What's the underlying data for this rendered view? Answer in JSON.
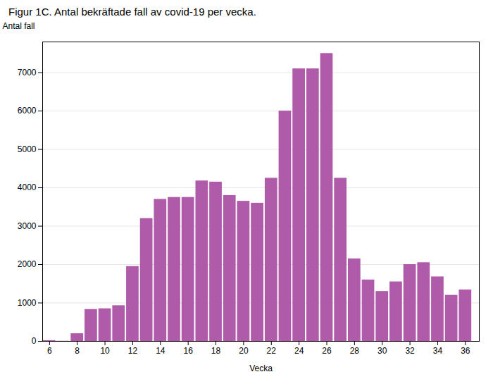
{
  "chart_data": {
    "type": "bar",
    "title": "Figur 1C. Antal bekräftade fall av covid-19 per vecka.",
    "xlabel": "Vecka",
    "ylabel": "Antal fall",
    "x": [
      6,
      7,
      8,
      9,
      10,
      11,
      12,
      13,
      14,
      15,
      16,
      17,
      18,
      19,
      20,
      21,
      22,
      23,
      24,
      25,
      26,
      27,
      28,
      29,
      30,
      31,
      32,
      33,
      34,
      35,
      36
    ],
    "values": [
      20,
      5,
      200,
      830,
      850,
      930,
      1950,
      3200,
      3700,
      3750,
      3750,
      4180,
      4150,
      3800,
      3650,
      3600,
      4250,
      6000,
      7100,
      7100,
      7500,
      4250,
      2150,
      1600,
      1300,
      1550,
      2000,
      2050,
      1680,
      1200,
      1340
    ],
    "color": "#b05aaa",
    "xlim": [
      5.5,
      37
    ],
    "xticks": [
      6,
      8,
      10,
      12,
      14,
      16,
      18,
      20,
      22,
      24,
      26,
      28,
      30,
      32,
      34,
      36
    ],
    "ylim": [
      0,
      7800
    ],
    "yticks": [
      0,
      1000,
      2000,
      3000,
      4000,
      5000,
      6000,
      7000
    ],
    "grid": true
  }
}
